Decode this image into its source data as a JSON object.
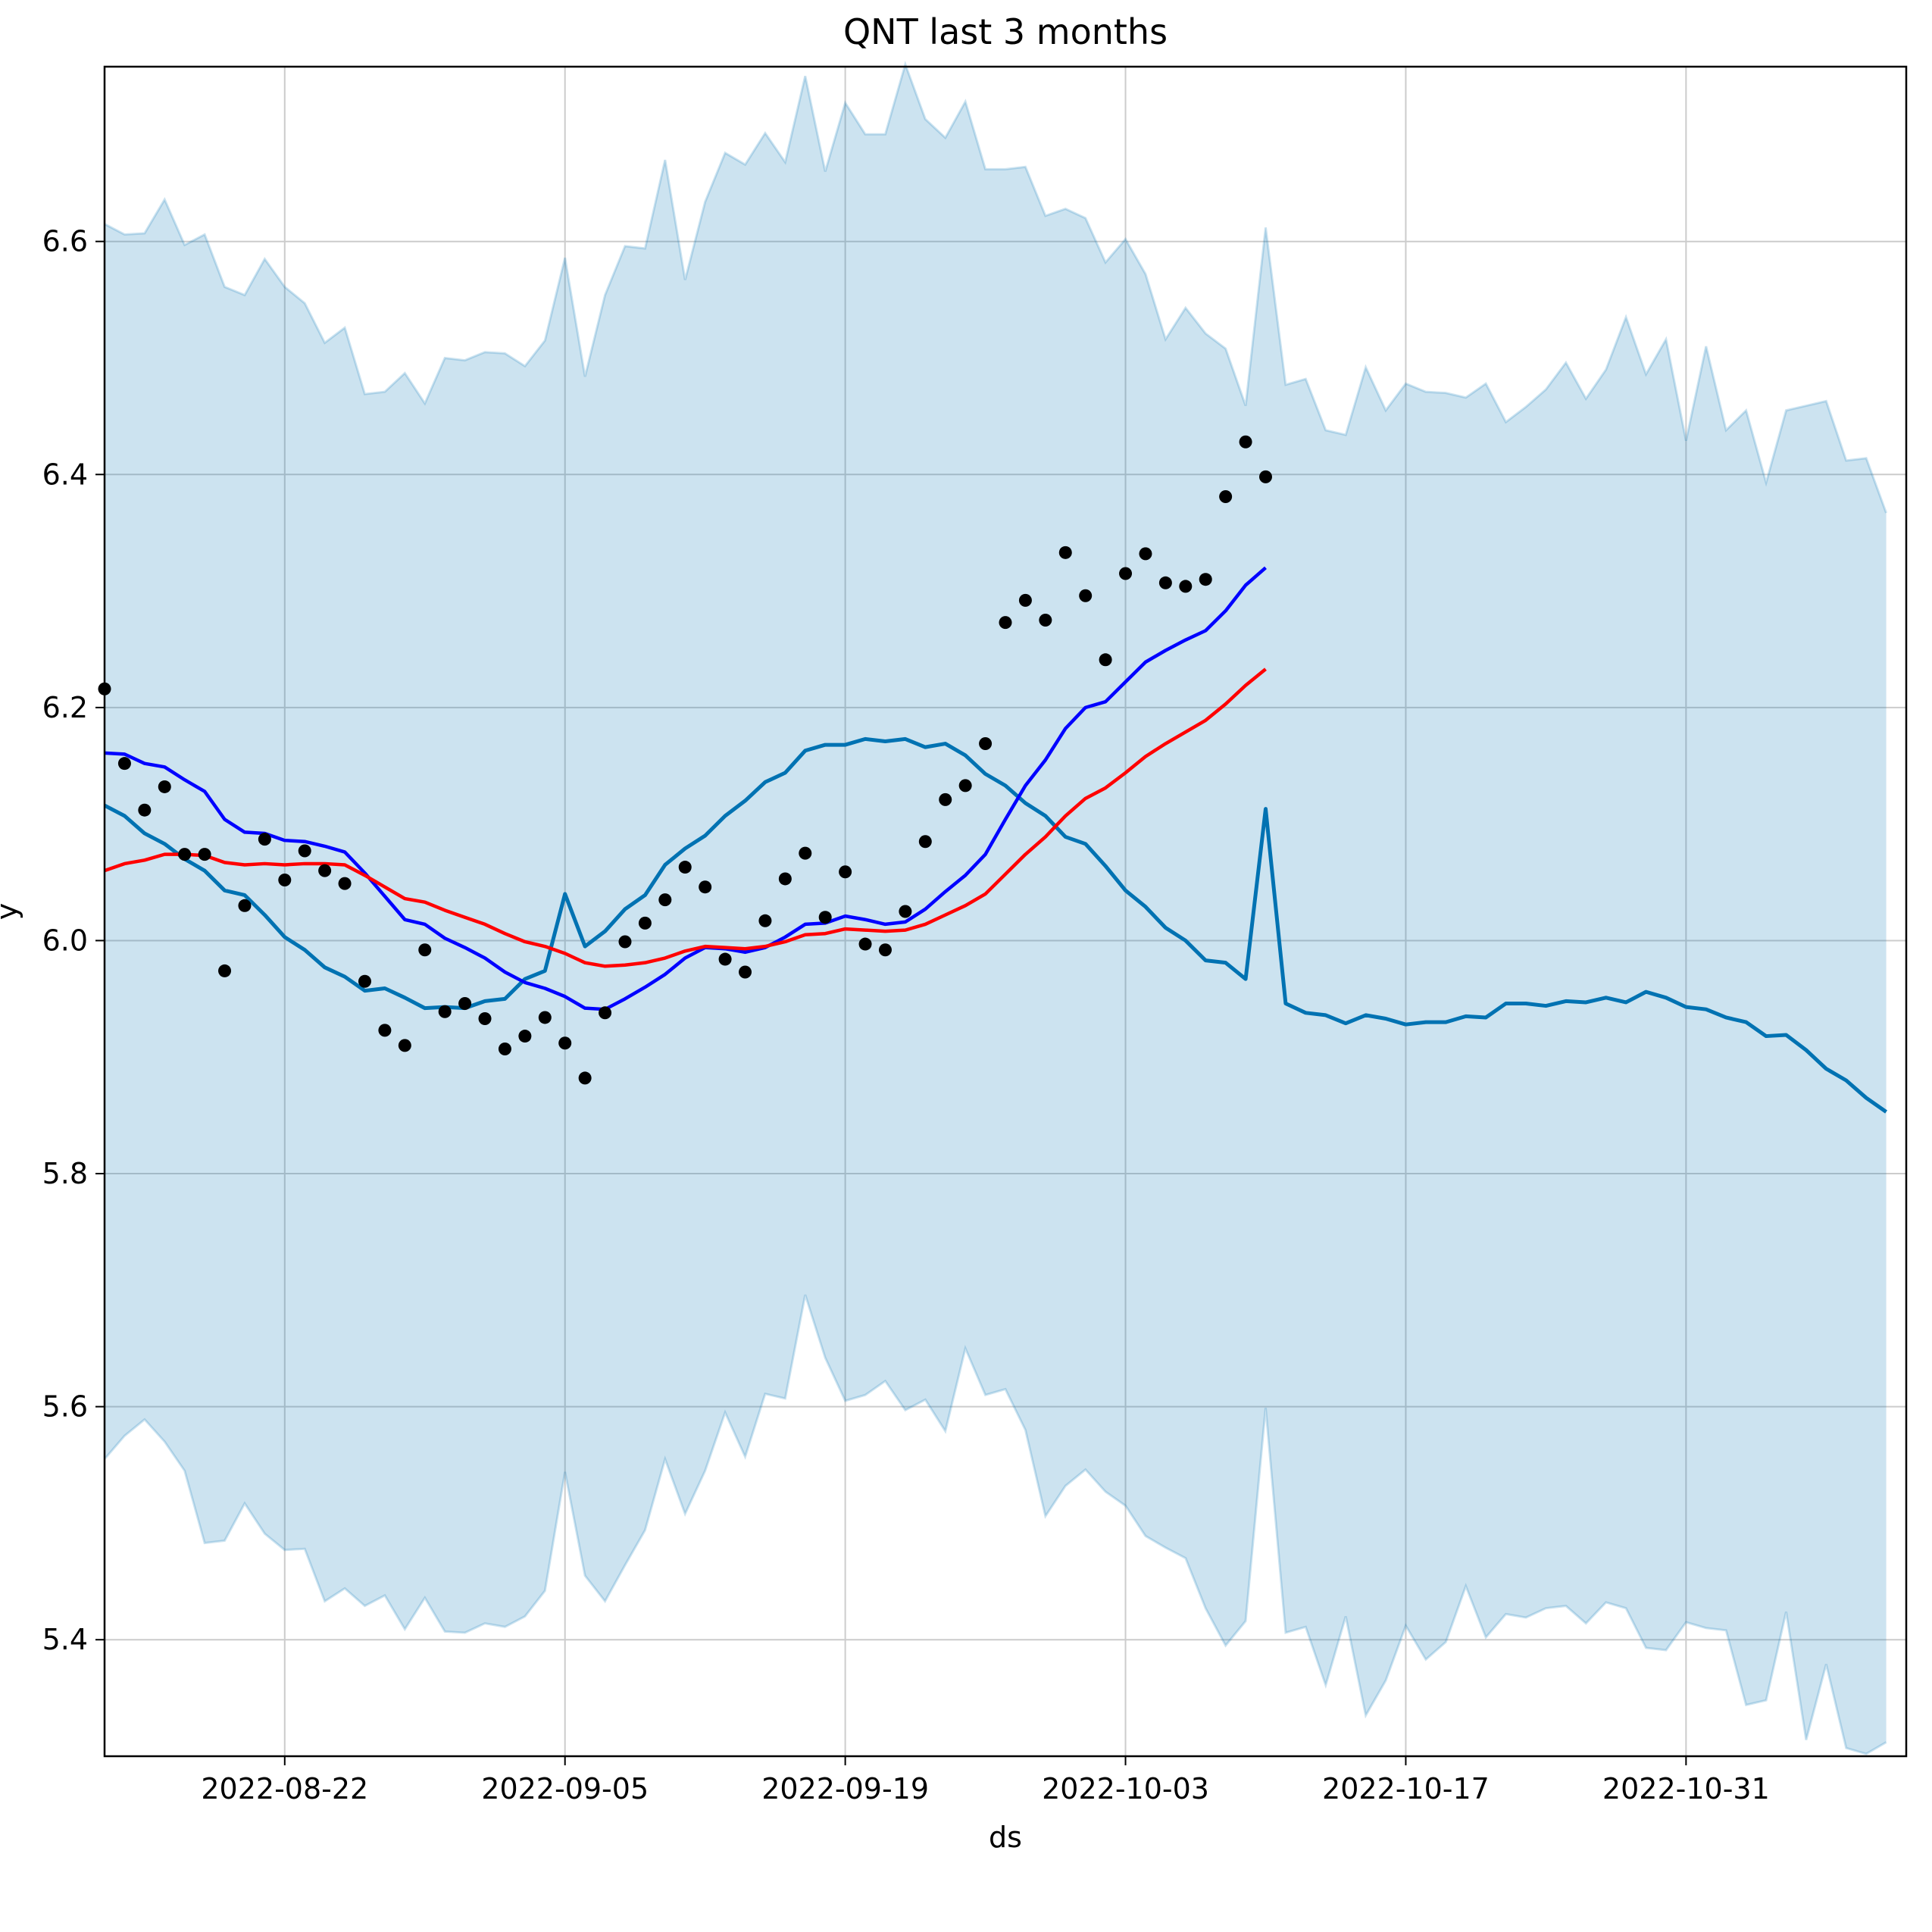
{
  "chart_data": {
    "type": "line",
    "title": "QNT last 3 months",
    "xlabel": "ds",
    "ylabel": "y",
    "x_range": [
      "2022-08-13",
      "2022-11-11"
    ],
    "ylim": [
      5.3,
      6.75
    ],
    "x_ticks": [
      "2022-08-22",
      "2022-09-05",
      "2022-09-19",
      "2022-10-03",
      "2022-10-17",
      "2022-10-31"
    ],
    "y_ticks": [
      5.4,
      5.6,
      5.8,
      6.0,
      6.2,
      6.4,
      6.6
    ],
    "grid": true,
    "colors": {
      "forecast": "#0072b2",
      "band": "#0072b2",
      "ma_fast": "#0000ff",
      "ma_slow": "#ff0000",
      "observed": "#000000"
    },
    "series": [
      {
        "kind": "band",
        "start": "2022-08-13",
        "upper": [
          6.615,
          6.606,
          6.607,
          6.636,
          6.597,
          6.606,
          6.561,
          6.554,
          6.585,
          6.561,
          6.547,
          6.513,
          6.526,
          6.469,
          6.471,
          6.487,
          6.461,
          6.5,
          6.498,
          6.505,
          6.504,
          6.493,
          6.515,
          6.586,
          6.484,
          6.554,
          6.596,
          6.594,
          6.67,
          6.567,
          6.634,
          6.676,
          6.666,
          6.693,
          6.668,
          6.742,
          6.66,
          6.719,
          6.692,
          6.692,
          6.752,
          6.705,
          6.689,
          6.72,
          6.662,
          6.662,
          6.664,
          6.622,
          6.628,
          6.62,
          6.582,
          6.602,
          6.572,
          6.516,
          6.543,
          6.521,
          6.508,
          6.459,
          6.612,
          6.477,
          6.482,
          6.438,
          6.434,
          6.492,
          6.455,
          6.478,
          6.471,
          6.47,
          6.466,
          6.478,
          6.445,
          6.458,
          6.473,
          6.496,
          6.465,
          6.49,
          6.535,
          6.486,
          6.516,
          6.429,
          6.51,
          6.438,
          6.455,
          6.393,
          6.455,
          6.459,
          6.463,
          6.412,
          6.414,
          6.367
        ],
        "lower": [
          5.555,
          5.575,
          5.589,
          5.57,
          5.545,
          5.483,
          5.485,
          5.517,
          5.491,
          5.477,
          5.478,
          5.433,
          5.444,
          5.429,
          5.438,
          5.409,
          5.436,
          5.407,
          5.406,
          5.414,
          5.411,
          5.42,
          5.442,
          5.544,
          5.455,
          5.433,
          5.464,
          5.494,
          5.555,
          5.508,
          5.545,
          5.595,
          5.557,
          5.611,
          5.607,
          5.696,
          5.642,
          5.605,
          5.61,
          5.622,
          5.597,
          5.606,
          5.579,
          5.65,
          5.61,
          5.615,
          5.58,
          5.506,
          5.532,
          5.546,
          5.527,
          5.515,
          5.489,
          5.479,
          5.47,
          5.427,
          5.395,
          5.416,
          5.599,
          5.406,
          5.411,
          5.361,
          5.42,
          5.335,
          5.365,
          5.412,
          5.383,
          5.398,
          5.446,
          5.402,
          5.422,
          5.419,
          5.427,
          5.429,
          5.414,
          5.432,
          5.427,
          5.393,
          5.391,
          5.415,
          5.41,
          5.408,
          5.344,
          5.348,
          5.424,
          5.314,
          5.379,
          5.307,
          5.302,
          5.312
        ]
      },
      {
        "kind": "forecast",
        "start": "2022-08-13",
        "values": [
          6.116,
          6.107,
          6.092,
          6.083,
          6.07,
          6.06,
          6.043,
          6.039,
          6.022,
          6.003,
          5.992,
          5.977,
          5.969,
          5.957,
          5.959,
          5.951,
          5.942,
          5.943,
          5.942,
          5.948,
          5.95,
          5.967,
          5.974,
          6.04,
          5.995,
          6.008,
          6.027,
          6.039,
          6.065,
          6.079,
          6.09,
          6.107,
          6.12,
          6.136,
          6.144,
          6.163,
          6.168,
          6.168,
          6.173,
          6.171,
          6.173,
          6.166,
          6.169,
          6.159,
          6.143,
          6.133,
          6.118,
          6.107,
          6.089,
          6.083,
          6.064,
          6.043,
          6.029,
          6.011,
          6.0,
          5.983,
          5.981,
          5.967,
          6.113,
          5.946,
          5.938,
          5.936,
          5.929,
          5.936,
          5.933,
          5.928,
          5.93,
          5.93,
          5.935,
          5.934,
          5.946,
          5.946,
          5.944,
          5.948,
          5.947,
          5.951,
          5.947,
          5.956,
          5.951,
          5.943,
          5.941,
          5.934,
          5.93,
          5.918,
          5.919,
          5.906,
          5.89,
          5.88,
          5.865,
          5.853
        ]
      },
      {
        "kind": "ma_fast",
        "start": "2022-08-13",
        "values": [
          6.161,
          6.16,
          6.152,
          6.149,
          6.138,
          6.128,
          6.104,
          6.093,
          6.092,
          6.086,
          6.085,
          6.081,
          6.076,
          6.058,
          6.038,
          6.018,
          6.014,
          6.002,
          5.994,
          5.985,
          5.973,
          5.964,
          5.959,
          5.952,
          5.942,
          5.941,
          5.95,
          5.96,
          5.971,
          5.985,
          5.994,
          5.993,
          5.99,
          5.994,
          6.003,
          6.014,
          6.015,
          6.021,
          6.018,
          6.014,
          6.016,
          6.027,
          6.042,
          6.056,
          6.074,
          6.104,
          6.133,
          6.155,
          6.182,
          6.2,
          6.205,
          6.222,
          6.239,
          6.249,
          6.258,
          6.266,
          6.283,
          6.305,
          6.32
        ]
      },
      {
        "kind": "ma_slow",
        "start": "2022-08-13",
        "values": [
          6.06,
          6.066,
          6.069,
          6.074,
          6.074,
          6.073,
          6.067,
          6.065,
          6.066,
          6.065,
          6.066,
          6.066,
          6.065,
          6.056,
          6.046,
          6.036,
          6.033,
          6.026,
          6.02,
          6.014,
          6.006,
          5.999,
          5.995,
          5.989,
          5.981,
          5.978,
          5.979,
          5.981,
          5.985,
          5.991,
          5.995,
          5.994,
          5.993,
          5.995,
          5.999,
          6.005,
          6.006,
          6.01,
          6.009,
          6.008,
          6.009,
          6.014,
          6.022,
          6.03,
          6.04,
          6.057,
          6.074,
          6.089,
          6.107,
          6.122,
          6.131,
          6.144,
          6.158,
          6.169,
          6.179,
          6.189,
          6.203,
          6.219,
          6.233
        ]
      },
      {
        "kind": "observed",
        "start": "2022-08-13",
        "values": [
          6.216,
          6.152,
          6.112,
          6.132,
          6.074,
          6.074,
          5.974,
          6.03,
          6.087,
          6.052,
          6.077,
          6.06,
          6.049,
          5.965,
          5.923,
          5.91,
          5.992,
          5.939,
          5.946,
          5.933,
          5.907,
          5.918,
          5.934,
          5.912,
          5.882,
          5.938,
          5.999,
          6.015,
          6.035,
          6.063,
          6.046,
          5.984,
          5.973,
          6.017,
          6.053,
          6.075,
          6.02,
          6.059,
          5.997,
          5.992,
          6.025,
          6.085,
          6.121,
          6.133,
          6.169,
          6.273,
          6.292,
          6.275,
          6.333,
          6.296,
          6.241,
          6.315,
          6.332,
          6.307,
          6.304,
          6.31,
          6.381,
          6.428,
          6.398
        ]
      }
    ]
  }
}
